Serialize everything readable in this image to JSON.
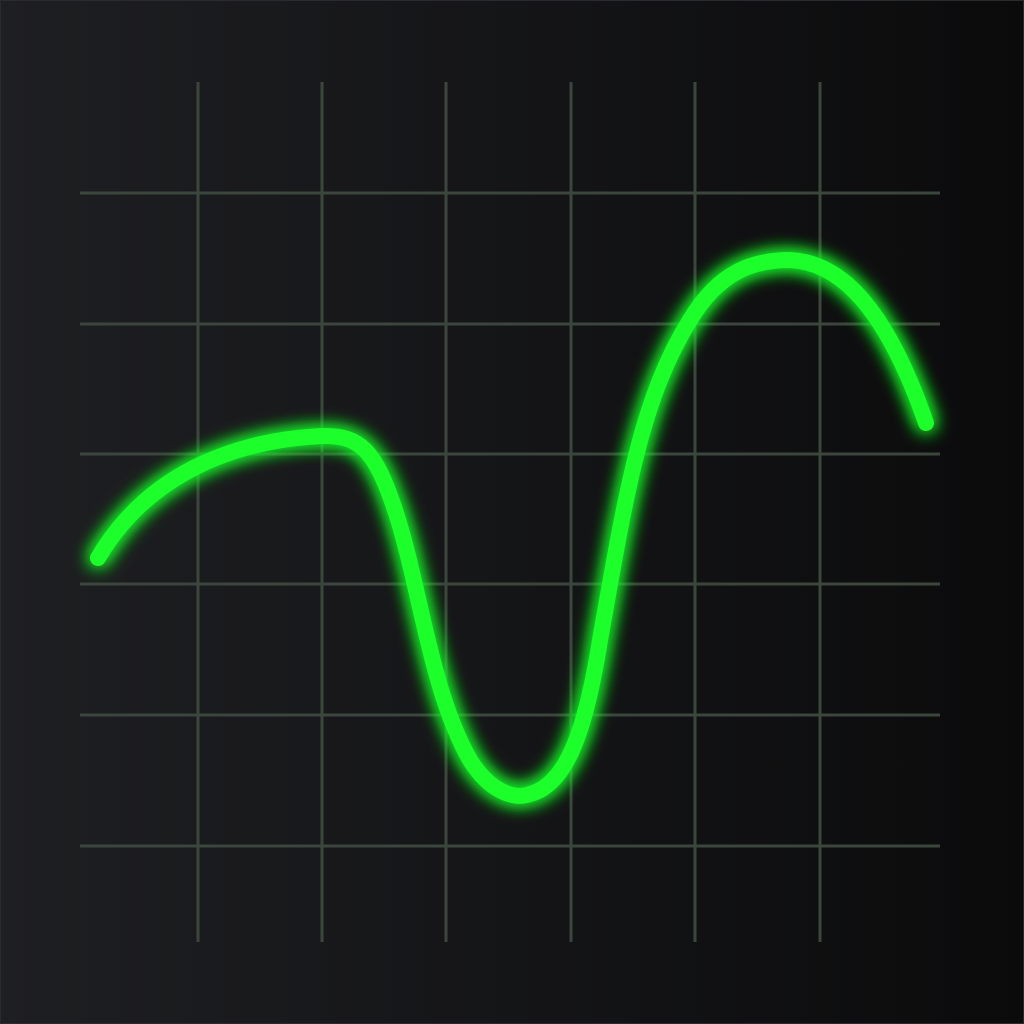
{
  "icon": {
    "name": "oscilloscope-waveform-icon",
    "background_gradient": [
      "#1e1f22",
      "#0b0b0c"
    ],
    "frame_border_color": "#2a2b2e",
    "grid_color": "#3b463d",
    "waveform_color": "#1cff2a",
    "glow_color": "#1cff2a"
  }
}
